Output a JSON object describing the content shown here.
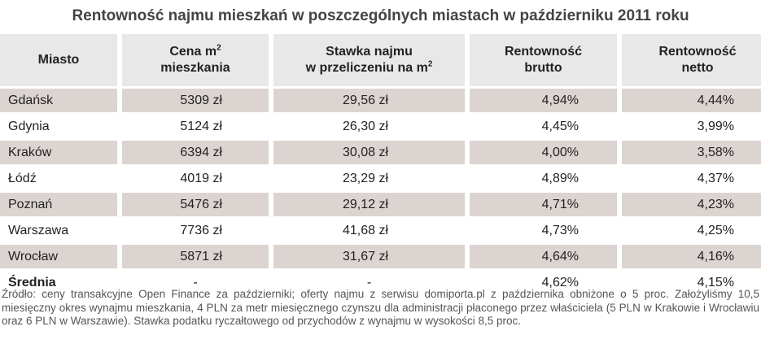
{
  "title": "Rentowność najmu mieszkań w poszczególnych miastach w październiku 2011 roku",
  "headers": {
    "city": "Miasto",
    "price_line1": "Cena m",
    "price_sup": "2",
    "price_line2": "mieszkania",
    "rent_line1": "Stawka najmu",
    "rent_line2": "w przeliczeniu na m",
    "rent_sup": "2",
    "brutto_line1": "Rentowność",
    "brutto_line2": "brutto",
    "netto_line1": "Rentowność",
    "netto_line2": "netto"
  },
  "rows": [
    {
      "city": "Gdańsk",
      "price": "5309 zł",
      "rent": "29,56 zł",
      "brutto": "4,94%",
      "netto": "4,44%"
    },
    {
      "city": "Gdynia",
      "price": "5124 zł",
      "rent": "26,30 zł",
      "brutto": "4,45%",
      "netto": "3,99%"
    },
    {
      "city": "Kraków",
      "price": "6394 zł",
      "rent": "30,08 zł",
      "brutto": "4,00%",
      "netto": "3,58%"
    },
    {
      "city": "Łódź",
      "price": "4019 zł",
      "rent": "23,29 zł",
      "brutto": "4,89%",
      "netto": "4,37%"
    },
    {
      "city": "Poznań",
      "price": "5476 zł",
      "rent": "29,12 zł",
      "brutto": "4,71%",
      "netto": "4,23%"
    },
    {
      "city": "Warszawa",
      "price": "7736 zł",
      "rent": "41,68 zł",
      "brutto": "4,73%",
      "netto": "4,25%"
    },
    {
      "city": "Wrocław",
      "price": "5871 zł",
      "rent": "31,67 zł",
      "brutto": "4,64%",
      "netto": "4,16%"
    }
  ],
  "average": {
    "city": "Średnia",
    "price": "-",
    "rent": "-",
    "brutto": "4,62%",
    "netto": "4,15%"
  },
  "footer": "Źródło: ceny transakcyjne Open Finance za październiki; oferty najmu z serwisu domiporta.pl z października obniżone o 5 proc. Założyliśmy 10,5 miesięczny okres wynajmu mieszkania, 4 PLN za metr miesięcznego czynszu dla administracji płaconego przez właściciela (5 PLN w Krakowie i Wrocławiu oraz 6 PLN w Warszawie). Stawka podatku ryczałtowego od przychodów z wynajmu w wysokości 8,5 proc."
}
